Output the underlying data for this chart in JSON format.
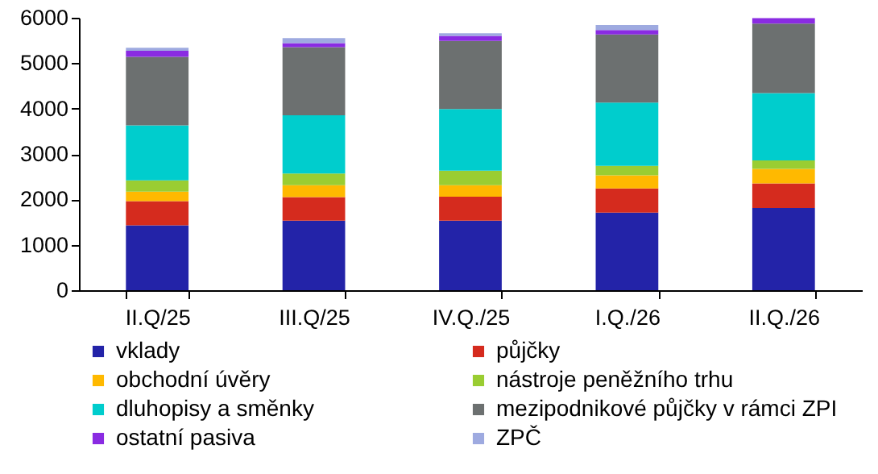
{
  "chart_data": {
    "type": "bar",
    "stacked": true,
    "categories": [
      "II.Q/25",
      "III.Q/25",
      "IV.Q./25",
      "I.Q./26",
      "II.Q./26"
    ],
    "ylim": [
      0,
      6000
    ],
    "yticks": [
      0,
      {
        "value": 1000,
        "label": "1000"
      },
      {
        "value": 2000,
        "label": "2000"
      },
      {
        "value": 3000,
        "label": "3000"
      },
      {
        "value": 4000,
        "label": "4000"
      },
      {
        "value": 5000,
        "label": "5000"
      },
      {
        "value": 6000,
        "label": "6000"
      }
    ],
    "grid": false,
    "legend": "bottom",
    "series": [
      {
        "name": "vklady",
        "color": "#2323a8",
        "values": [
          1430,
          1530,
          1530,
          1710,
          1810
        ]
      },
      {
        "name": "půjčky",
        "color": "#d52b1e",
        "values": [
          530,
          520,
          530,
          530,
          540
        ]
      },
      {
        "name": "obchodní úvěry",
        "color": "#ffb900",
        "values": [
          210,
          260,
          250,
          290,
          320
        ]
      },
      {
        "name": "nástroje peněžního trhu",
        "color": "#9acd32",
        "values": [
          250,
          260,
          320,
          210,
          190
        ]
      },
      {
        "name": "dluhopisy a směnky",
        "color": "#00cdcd",
        "values": [
          1210,
          1280,
          1360,
          1390,
          1480
        ]
      },
      {
        "name": "mezipodnikové půjčky v rámci ZPI",
        "color": "#6c7070",
        "values": [
          1510,
          1500,
          1500,
          1500,
          1530
        ]
      },
      {
        "name": "ostatní pasiva",
        "color": "#8a2be2",
        "values": [
          130,
          90,
          110,
          100,
          120
        ]
      },
      {
        "name": "ZPČ",
        "color": "#9eaae0",
        "values": [
          70,
          110,
          60,
          110,
          null
        ]
      }
    ]
  }
}
